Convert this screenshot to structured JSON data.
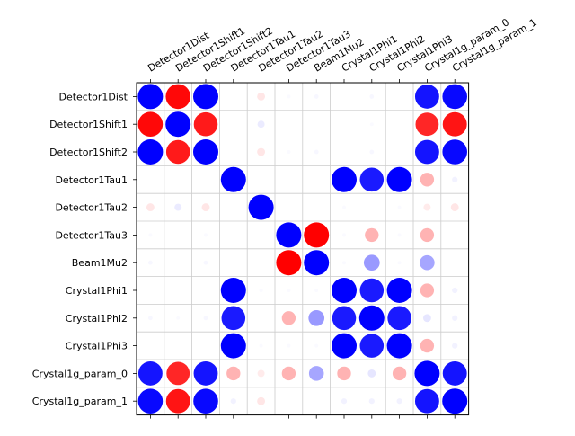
{
  "chart_data": {
    "type": "heatmap",
    "labels": [
      "Detector1Dist",
      "Detector1Shift1",
      "Detector1Shift2",
      "Detector1Tau1",
      "Detector1Tau2",
      "Detector1Tau3",
      "Beam1Mu2",
      "Crystal1Phi1",
      "Crystal1Phi2",
      "Crystal1Phi3",
      "Crystal1g_param_0",
      "Crystal1g_param_1"
    ],
    "value_range": [
      -1,
      1
    ],
    "positive_color": "#0000ff",
    "negative_color": "#ff0000",
    "grid": true,
    "x_tick_position": "top",
    "x_tick_rotation": 30,
    "values": [
      [
        1.0,
        -0.97,
        1.0,
        0.0,
        -0.1,
        0.02,
        0.03,
        0.0,
        0.03,
        0.0,
        0.92,
        0.97
      ],
      [
        -0.97,
        1.0,
        -0.9,
        0.0,
        0.08,
        0.0,
        0.0,
        0.0,
        0.02,
        0.0,
        -0.85,
        -0.92
      ],
      [
        1.0,
        -0.9,
        1.0,
        0.0,
        -0.1,
        0.02,
        0.03,
        0.0,
        0.03,
        0.0,
        0.92,
        0.97
      ],
      [
        0.0,
        0.0,
        0.0,
        1.0,
        0.0,
        0.0,
        0.0,
        1.0,
        0.9,
        1.0,
        -0.3,
        0.05
      ],
      [
        -0.1,
        0.08,
        -0.1,
        0.0,
        1.0,
        0.0,
        0.0,
        0.02,
        0.0,
        0.02,
        -0.08,
        -0.1
      ],
      [
        0.02,
        0.0,
        0.02,
        0.0,
        0.0,
        1.0,
        -1.0,
        0.02,
        -0.3,
        0.02,
        -0.3,
        0.0
      ],
      [
        0.03,
        0.0,
        0.03,
        0.0,
        0.0,
        -1.0,
        1.0,
        0.02,
        0.4,
        0.02,
        0.35,
        0.0
      ],
      [
        0.0,
        0.0,
        0.0,
        1.0,
        0.02,
        0.02,
        0.02,
        1.0,
        0.9,
        1.0,
        -0.3,
        0.05
      ],
      [
        0.03,
        0.02,
        0.03,
        0.9,
        0.0,
        -0.3,
        0.4,
        0.9,
        1.0,
        0.9,
        0.1,
        0.05
      ],
      [
        0.0,
        0.0,
        0.0,
        1.0,
        0.02,
        0.02,
        0.02,
        1.0,
        0.9,
        1.0,
        -0.3,
        0.05
      ],
      [
        0.92,
        -0.85,
        0.92,
        -0.3,
        -0.08,
        -0.3,
        0.35,
        -0.3,
        0.1,
        -0.3,
        1.0,
        0.92
      ],
      [
        0.97,
        -0.92,
        0.97,
        0.05,
        -0.1,
        0.0,
        0.0,
        0.05,
        0.05,
        0.05,
        0.92,
        1.0
      ]
    ]
  }
}
